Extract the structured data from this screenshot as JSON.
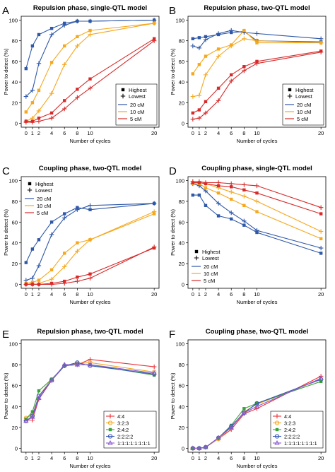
{
  "figure": {
    "x_ticks": [
      0,
      1,
      2,
      4,
      6,
      8,
      10,
      20
    ],
    "y_ticks": [
      0,
      20,
      40,
      60,
      80,
      100
    ],
    "colors": {
      "20cM": "#2f58a8",
      "10cM": "#f5a81e",
      "5cM": "#d72a2a",
      "4:4": "#e8333a",
      "3:2:3": "#f5a81e",
      "2:4:2": "#3aa33a",
      "2:2:2:2": "#3456b8",
      "1:1:1:1:1:1:1:1": "#8a5bd0"
    }
  },
  "chart_data": [
    {
      "panel": "A",
      "type": "line",
      "title": "Repulsion phase, single-QTL model",
      "xlabel": "Number of cycles",
      "ylabel": "Power to detect (%)",
      "ylim": [
        0,
        100
      ],
      "x": [
        0,
        1,
        2,
        4,
        6,
        8,
        10,
        20
      ],
      "legend": {
        "position": "bottom-right",
        "markers": [
          {
            "label": "Highest",
            "marker": "square"
          },
          {
            "label": "Lowest",
            "marker": "plus"
          }
        ],
        "lines": [
          "20 cM",
          "10 cM",
          "5 cM"
        ]
      },
      "series": [
        {
          "name": "20 cM",
          "level": "Highest",
          "color": "#2f58a8",
          "marker": "square",
          "values": [
            53,
            75,
            86,
            92,
            97,
            99,
            99,
            100
          ]
        },
        {
          "name": "20 cM",
          "level": "Lowest",
          "color": "#2f58a8",
          "marker": "plus",
          "values": [
            26,
            32,
            58,
            86,
            95,
            99,
            99,
            100
          ]
        },
        {
          "name": "10 cM",
          "level": "Highest",
          "color": "#f5a81e",
          "marker": "square",
          "values": [
            11,
            20,
            32,
            59,
            75,
            84,
            90,
            97
          ]
        },
        {
          "name": "10 cM",
          "level": "Lowest",
          "color": "#f5a81e",
          "marker": "plus",
          "values": [
            2,
            5,
            12,
            29,
            57,
            75,
            86,
            97
          ]
        },
        {
          "name": "5 cM",
          "level": "Highest",
          "color": "#d72a2a",
          "marker": "square",
          "values": [
            2,
            2,
            5,
            10,
            22,
            33,
            43,
            82
          ]
        },
        {
          "name": "5 cM",
          "level": "Lowest",
          "color": "#d72a2a",
          "marker": "plus",
          "values": [
            1,
            1,
            2,
            5,
            14,
            25,
            34,
            80
          ]
        }
      ]
    },
    {
      "panel": "B",
      "type": "line",
      "title": "Repulsion phase, two-QTL model",
      "xlabel": "Number of cycles",
      "ylabel": "Power to detect (%)",
      "ylim": [
        0,
        100
      ],
      "x": [
        0,
        1,
        2,
        4,
        6,
        8,
        10,
        20
      ],
      "legend": {
        "position": "bottom-right",
        "markers": [
          {
            "label": "Highest",
            "marker": "square"
          },
          {
            "label": "Lowest",
            "marker": "plus"
          }
        ],
        "lines": [
          "20 cM",
          "10 cM",
          "5 cM"
        ]
      },
      "series": [
        {
          "name": "20 cM",
          "level": "Highest",
          "color": "#2f58a8",
          "marker": "square",
          "values": [
            82,
            83,
            84,
            86,
            88,
            89,
            80,
            79
          ]
        },
        {
          "name": "20 cM",
          "level": "Lowest",
          "color": "#2f58a8",
          "marker": "plus",
          "values": [
            75,
            73,
            81,
            87,
            90,
            88,
            87,
            82
          ]
        },
        {
          "name": "10 cM",
          "level": "Highest",
          "color": "#f5a81e",
          "marker": "square",
          "values": [
            48,
            57,
            65,
            72,
            76,
            90,
            78,
            78
          ]
        },
        {
          "name": "10 cM",
          "level": "Lowest",
          "color": "#f5a81e",
          "marker": "plus",
          "values": [
            26,
            27,
            47,
            65,
            75,
            82,
            80,
            78
          ]
        },
        {
          "name": "5 cM",
          "level": "Highest",
          "color": "#d72a2a",
          "marker": "square",
          "values": [
            10,
            13,
            21,
            34,
            47,
            55,
            60,
            70
          ]
        },
        {
          "name": "5 cM",
          "level": "Lowest",
          "color": "#d72a2a",
          "marker": "plus",
          "values": [
            4,
            5,
            10,
            22,
            41,
            51,
            58,
            69
          ]
        }
      ]
    },
    {
      "panel": "C",
      "type": "line",
      "title": "Coupling phase, two-QTL model",
      "xlabel": "Number of cycles",
      "ylabel": "Power to detect (%)",
      "ylim": [
        0,
        100
      ],
      "x": [
        0,
        1,
        2,
        4,
        6,
        8,
        10,
        20
      ],
      "legend": {
        "position": "top-left",
        "markers": [
          {
            "label": "Highest",
            "marker": "square"
          },
          {
            "label": "Lowest",
            "marker": "plus"
          }
        ],
        "lines": [
          "20 cM",
          "10 cM",
          "5 cM"
        ]
      },
      "series": [
        {
          "name": "20 cM",
          "level": "Highest",
          "color": "#2f58a8",
          "marker": "square",
          "values": [
            21,
            34,
            43,
            60,
            68,
            74,
            72,
            78
          ]
        },
        {
          "name": "20 cM",
          "level": "Lowest",
          "color": "#2f58a8",
          "marker": "plus",
          "values": [
            4,
            6,
            18,
            48,
            64,
            72,
            76,
            78
          ]
        },
        {
          "name": "10 cM",
          "level": "Highest",
          "color": "#f5a81e",
          "marker": "square",
          "values": [
            1,
            2,
            4,
            14,
            30,
            40,
            43,
            68
          ]
        },
        {
          "name": "10 cM",
          "level": "Lowest",
          "color": "#f5a81e",
          "marker": "plus",
          "values": [
            0,
            1,
            1,
            5,
            17,
            32,
            43,
            70
          ]
        },
        {
          "name": "5 cM",
          "level": "Highest",
          "color": "#d72a2a",
          "marker": "square",
          "values": [
            0,
            0,
            0,
            1,
            3,
            7,
            10,
            35
          ]
        },
        {
          "name": "5 cM",
          "level": "Lowest",
          "color": "#d72a2a",
          "marker": "plus",
          "values": [
            0,
            0,
            0,
            0,
            1,
            3,
            6,
            36
          ]
        }
      ]
    },
    {
      "panel": "D",
      "type": "line",
      "title": "Coupling phase, single-QTL model",
      "xlabel": "Number of cycles",
      "ylabel": "Power to detect (%)",
      "ylim": [
        0,
        100
      ],
      "x": [
        0,
        1,
        2,
        4,
        6,
        8,
        10,
        20
      ],
      "legend": {
        "position": "bottom-left",
        "markers": [
          {
            "label": "Highest",
            "marker": "square"
          },
          {
            "label": "Lowest",
            "marker": "plus"
          }
        ],
        "lines": [
          "20 cM",
          "10 cM",
          "5 cM"
        ]
      },
      "series": [
        {
          "name": "20 cM",
          "level": "Highest",
          "color": "#2f58a8",
          "marker": "square",
          "values": [
            86,
            86,
            76,
            66,
            63,
            57,
            50,
            30
          ]
        },
        {
          "name": "20 cM",
          "level": "Lowest",
          "color": "#2f58a8",
          "marker": "plus",
          "values": [
            97,
            95,
            90,
            78,
            69,
            61,
            52,
            35
          ]
        },
        {
          "name": "10 cM",
          "level": "Highest",
          "color": "#f5a81e",
          "marker": "square",
          "values": [
            97,
            97,
            93,
            88,
            82,
            76,
            70,
            44
          ]
        },
        {
          "name": "10 cM",
          "level": "Lowest",
          "color": "#f5a81e",
          "marker": "plus",
          "values": [
            99,
            98,
            97,
            93,
            89,
            85,
            80,
            51
          ]
        },
        {
          "name": "5 cM",
          "level": "Highest",
          "color": "#d72a2a",
          "marker": "square",
          "values": [
            98,
            98,
            97,
            95,
            94,
            91,
            88,
            68
          ]
        },
        {
          "name": "5 cM",
          "level": "Lowest",
          "color": "#d72a2a",
          "marker": "plus",
          "values": [
            99,
            99,
            98,
            98,
            97,
            96,
            95,
            74
          ]
        }
      ]
    },
    {
      "panel": "E",
      "type": "line",
      "title": "Repulsion phase, two-QTL model",
      "xlabel": "Number of cycles",
      "ylabel": "Power to detect (%)",
      "ylim": [
        0,
        100
      ],
      "x": [
        0,
        1,
        2,
        4,
        6,
        8,
        10,
        20
      ],
      "legend": {
        "position": "bottom-right"
      },
      "series": [
        {
          "name": "4:4",
          "color": "#e8333a",
          "marker": "plus",
          "values": [
            27,
            27,
            47,
            65,
            79,
            80,
            85,
            78
          ]
        },
        {
          "name": "3:2:3",
          "color": "#f5a81e",
          "marker": "circle",
          "values": [
            29,
            32,
            50,
            66,
            79,
            81,
            82,
            73
          ]
        },
        {
          "name": "2:4:2",
          "color": "#3aa33a",
          "marker": "square",
          "values": [
            28,
            35,
            55,
            66,
            79,
            80,
            80,
            70
          ]
        },
        {
          "name": "2:2:2:2",
          "color": "#3456b8",
          "marker": "circle",
          "values": [
            26,
            31,
            50,
            65,
            79,
            82,
            79,
            71
          ]
        },
        {
          "name": "1:1:1:1:1:1:1:1",
          "color": "#8a5bd0",
          "marker": "triangle",
          "values": [
            26,
            30,
            48,
            65,
            80,
            80,
            80,
            72
          ]
        }
      ]
    },
    {
      "panel": "F",
      "type": "line",
      "title": "Coupling phase, two-QTL model",
      "xlabel": "Number of cycles",
      "ylabel": "Power to detect (%)",
      "ylim": [
        0,
        100
      ],
      "x": [
        0,
        1,
        2,
        4,
        6,
        8,
        10,
        20
      ],
      "legend": {
        "position": "bottom-right"
      },
      "series": [
        {
          "name": "4:4",
          "color": "#e8333a",
          "marker": "plus",
          "values": [
            0,
            0,
            1,
            9,
            18,
            33,
            38,
            69
          ]
        },
        {
          "name": "3:2:3",
          "color": "#f5a81e",
          "marker": "circle",
          "values": [
            0,
            0,
            1,
            9,
            20,
            35,
            42,
            66
          ]
        },
        {
          "name": "2:4:2",
          "color": "#3aa33a",
          "marker": "square",
          "values": [
            0,
            0,
            1,
            10,
            22,
            38,
            43,
            64
          ]
        },
        {
          "name": "2:2:2:2",
          "color": "#3456b8",
          "marker": "circle",
          "values": [
            0,
            0,
            1,
            10,
            21,
            34,
            43,
            66
          ]
        },
        {
          "name": "1:1:1:1:1:1:1:1",
          "color": "#8a5bd0",
          "marker": "triangle",
          "values": [
            0,
            0,
            1,
            10,
            20,
            34,
            40,
            67
          ]
        }
      ]
    }
  ]
}
